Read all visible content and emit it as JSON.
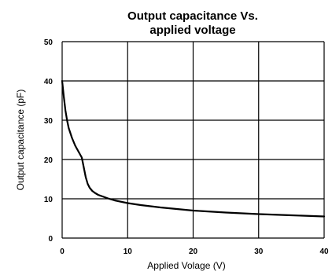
{
  "chart_data": {
    "type": "line",
    "title_lines": [
      "Output capacitance Vs.",
      "applied voltage"
    ],
    "xlabel": "Applied Volage (V)",
    "ylabel": "Output capacitance (pF)",
    "xlim": [
      0,
      40
    ],
    "ylim": [
      0,
      50
    ],
    "x_ticks": [
      0,
      10,
      20,
      30,
      40
    ],
    "y_ticks": [
      0,
      10,
      20,
      30,
      40,
      50
    ],
    "x_tick_labels": [
      "0",
      "10",
      "20",
      "30",
      "40"
    ],
    "y_tick_labels": [
      "0",
      "10",
      "20",
      "30",
      "40",
      "50"
    ],
    "grid": true,
    "legend": "none",
    "line_color": "#000000",
    "series": [
      {
        "x": [
          0,
          0.25,
          0.5,
          0.75,
          1.0,
          1.5,
          2.0,
          2.5,
          3.0,
          3.3,
          3.6,
          3.9,
          4.2,
          4.6,
          5.0,
          5.5,
          6.0,
          7.0,
          8.0,
          10.0,
          12.0,
          15.0,
          20.0,
          25.0,
          30.0,
          35.0,
          40.0
        ],
        "y": [
          40.0,
          36.0,
          32.5,
          30.0,
          28.0,
          25.5,
          23.5,
          22.0,
          20.5,
          18.0,
          15.5,
          13.8,
          12.8,
          12.0,
          11.5,
          11.0,
          10.7,
          10.1,
          9.6,
          8.9,
          8.4,
          7.8,
          7.0,
          6.5,
          6.1,
          5.8,
          5.5
        ]
      }
    ]
  }
}
